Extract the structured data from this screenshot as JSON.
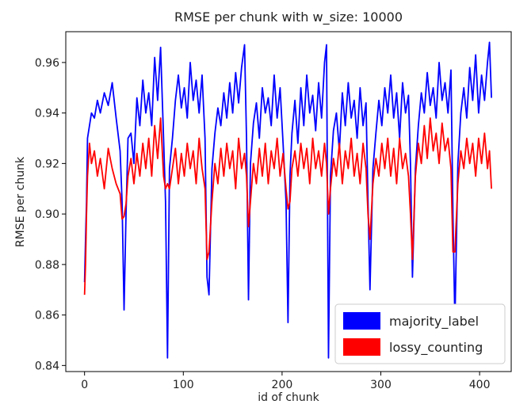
{
  "chart_data": {
    "type": "line",
    "title": "RMSE per chunk with w_size: 10000",
    "xlabel": "id of chunk",
    "ylabel": "RMSE per chunk",
    "xlim": [
      -19,
      432
    ],
    "ylim": [
      0.8376,
      0.9722
    ],
    "xticks": [
      0,
      100,
      200,
      300,
      400
    ],
    "yticks": [
      0.84,
      0.86,
      0.88,
      0.9,
      0.92,
      0.94,
      0.96
    ],
    "ytick_labels": [
      "0.84",
      "0.86",
      "0.88",
      "0.90",
      "0.92",
      "0.94",
      "0.96"
    ],
    "xtick_labels": [
      "0",
      "100",
      "200",
      "300",
      "400"
    ],
    "grid": false,
    "legend_position": "lower-right",
    "series": [
      {
        "name": "majority_label",
        "color": "#0000ff",
        "x": [
          0,
          1,
          2,
          3,
          5,
          7,
          10,
          13,
          16,
          20,
          24,
          28,
          32,
          36,
          38,
          40,
          42,
          44,
          47,
          50,
          53,
          56,
          59,
          62,
          65,
          68,
          71,
          74,
          77,
          80,
          82,
          84,
          86,
          89,
          92,
          95,
          98,
          101,
          104,
          107,
          110,
          113,
          116,
          119,
          122,
          124,
          126,
          129,
          132,
          135,
          138,
          141,
          144,
          147,
          150,
          153,
          156,
          159,
          162,
          164,
          166,
          168,
          171,
          174,
          177,
          180,
          183,
          186,
          189,
          192,
          195,
          198,
          201,
          204,
          206,
          208,
          210,
          213,
          216,
          219,
          222,
          225,
          228,
          231,
          234,
          237,
          240,
          243,
          245,
          247,
          249,
          252,
          255,
          258,
          261,
          264,
          267,
          270,
          273,
          276,
          279,
          282,
          285,
          287,
          289,
          292,
          295,
          298,
          301,
          304,
          307,
          310,
          313,
          316,
          319,
          322,
          325,
          328,
          330,
          332,
          335,
          338,
          341,
          344,
          347,
          350,
          353,
          356,
          359,
          362,
          365,
          368,
          371,
          373,
          375,
          378,
          381,
          384,
          387,
          390,
          393,
          396,
          399,
          402,
          405,
          408,
          410,
          412
        ],
        "values": [
          0.873,
          0.89,
          0.905,
          0.93,
          0.935,
          0.94,
          0.938,
          0.945,
          0.94,
          0.948,
          0.943,
          0.952,
          0.938,
          0.925,
          0.905,
          0.862,
          0.9,
          0.93,
          0.932,
          0.92,
          0.946,
          0.935,
          0.953,
          0.94,
          0.948,
          0.935,
          0.962,
          0.945,
          0.966,
          0.93,
          0.905,
          0.843,
          0.918,
          0.93,
          0.945,
          0.955,
          0.942,
          0.95,
          0.938,
          0.96,
          0.945,
          0.953,
          0.94,
          0.955,
          0.93,
          0.875,
          0.868,
          0.918,
          0.932,
          0.942,
          0.935,
          0.948,
          0.938,
          0.952,
          0.94,
          0.956,
          0.944,
          0.958,
          0.967,
          0.93,
          0.866,
          0.92,
          0.936,
          0.944,
          0.93,
          0.95,
          0.94,
          0.946,
          0.935,
          0.955,
          0.938,
          0.95,
          0.928,
          0.905,
          0.857,
          0.915,
          0.932,
          0.945,
          0.928,
          0.95,
          0.935,
          0.955,
          0.94,
          0.947,
          0.933,
          0.952,
          0.938,
          0.96,
          0.967,
          0.843,
          0.915,
          0.933,
          0.94,
          0.925,
          0.948,
          0.935,
          0.952,
          0.938,
          0.945,
          0.93,
          0.95,
          0.935,
          0.944,
          0.905,
          0.87,
          0.918,
          0.932,
          0.945,
          0.935,
          0.95,
          0.94,
          0.955,
          0.938,
          0.948,
          0.93,
          0.952,
          0.94,
          0.947,
          0.92,
          0.875,
          0.918,
          0.935,
          0.948,
          0.94,
          0.956,
          0.943,
          0.95,
          0.938,
          0.96,
          0.945,
          0.952,
          0.94,
          0.957,
          0.9,
          0.857,
          0.92,
          0.94,
          0.95,
          0.938,
          0.958,
          0.945,
          0.963,
          0.94,
          0.955,
          0.945,
          0.96,
          0.968,
          0.946
        ]
      },
      {
        "name": "lossy_counting",
        "color": "#ff0000",
        "x": [
          0,
          1,
          2,
          3,
          5,
          7,
          10,
          13,
          16,
          20,
          24,
          28,
          32,
          36,
          38,
          40,
          42,
          44,
          47,
          50,
          53,
          56,
          59,
          62,
          65,
          68,
          71,
          74,
          77,
          80,
          82,
          84,
          86,
          89,
          92,
          95,
          98,
          101,
          104,
          107,
          110,
          113,
          116,
          119,
          122,
          124,
          126,
          129,
          132,
          135,
          138,
          141,
          144,
          147,
          150,
          153,
          156,
          159,
          162,
          164,
          166,
          168,
          171,
          174,
          177,
          180,
          183,
          186,
          189,
          192,
          195,
          198,
          201,
          204,
          206,
          208,
          210,
          213,
          216,
          219,
          222,
          225,
          228,
          231,
          234,
          237,
          240,
          243,
          245,
          247,
          249,
          252,
          255,
          258,
          261,
          264,
          267,
          270,
          273,
          276,
          279,
          282,
          285,
          287,
          289,
          292,
          295,
          298,
          301,
          304,
          307,
          310,
          313,
          316,
          319,
          322,
          325,
          328,
          330,
          332,
          335,
          338,
          341,
          344,
          347,
          350,
          353,
          356,
          359,
          362,
          365,
          368,
          371,
          373,
          375,
          378,
          381,
          384,
          387,
          390,
          393,
          396,
          399,
          402,
          405,
          408,
          410,
          412
        ],
        "values": [
          0.868,
          0.88,
          0.9,
          0.915,
          0.928,
          0.92,
          0.925,
          0.915,
          0.922,
          0.91,
          0.926,
          0.918,
          0.912,
          0.908,
          0.898,
          0.899,
          0.904,
          0.915,
          0.922,
          0.912,
          0.924,
          0.915,
          0.928,
          0.918,
          0.93,
          0.915,
          0.935,
          0.922,
          0.938,
          0.915,
          0.91,
          0.912,
          0.91,
          0.918,
          0.926,
          0.912,
          0.924,
          0.915,
          0.928,
          0.918,
          0.925,
          0.912,
          0.93,
          0.918,
          0.91,
          0.882,
          0.885,
          0.905,
          0.92,
          0.912,
          0.926,
          0.915,
          0.928,
          0.918,
          0.925,
          0.91,
          0.93,
          0.918,
          0.924,
          0.915,
          0.895,
          0.905,
          0.92,
          0.912,
          0.926,
          0.915,
          0.928,
          0.912,
          0.925,
          0.918,
          0.93,
          0.915,
          0.924,
          0.91,
          0.902,
          0.905,
          0.918,
          0.925,
          0.915,
          0.928,
          0.918,
          0.926,
          0.912,
          0.93,
          0.918,
          0.925,
          0.915,
          0.928,
          0.92,
          0.9,
          0.91,
          0.922,
          0.915,
          0.928,
          0.912,
          0.925,
          0.918,
          0.93,
          0.915,
          0.924,
          0.912,
          0.928,
          0.918,
          0.9,
          0.89,
          0.912,
          0.922,
          0.915,
          0.928,
          0.918,
          0.93,
          0.915,
          0.926,
          0.912,
          0.93,
          0.918,
          0.924,
          0.915,
          0.9,
          0.882,
          0.915,
          0.928,
          0.92,
          0.935,
          0.922,
          0.938,
          0.925,
          0.932,
          0.92,
          0.936,
          0.925,
          0.93,
          0.918,
          0.885,
          0.885,
          0.912,
          0.925,
          0.918,
          0.93,
          0.92,
          0.928,
          0.915,
          0.93,
          0.92,
          0.932,
          0.918,
          0.925,
          0.91
        ]
      }
    ]
  }
}
